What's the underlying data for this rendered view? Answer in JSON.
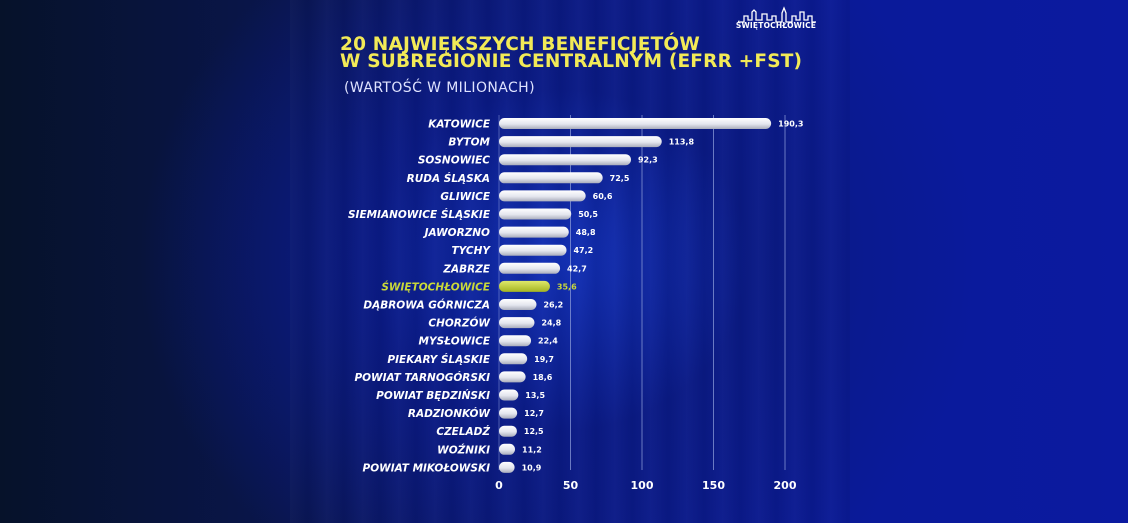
{
  "header": {
    "title_line1": "20 NAJWIĘKSZYCH BENEFICJĘTÓW",
    "title_line2": "W SUBREGIONIE CENTRALNYM (EFRR +FST)",
    "subtitle": "(WARTOŚĆ W MILIONACH)",
    "logo_text": "ŚWIĘTOCHŁOWICE"
  },
  "colors": {
    "title": "#f2ea57",
    "highlight": "#c9d83a",
    "bar": "#e9eaf0",
    "label": "#ffffff",
    "gridline": "#8a9ad8"
  },
  "chart_data": {
    "type": "bar",
    "orientation": "horizontal",
    "categories": [
      "KATOWICE",
      "BYTOM",
      "SOSNOWIEC",
      "RUDA ŚLĄSKA",
      "GLIWICE",
      "SIEMIANOWICE ŚLĄSKIE",
      "JAWORZNO",
      "TYCHY",
      "ZABRZE",
      "ŚWIĘTOCHŁOWICE",
      "DĄBROWA GÓRNICZA",
      "CHORZÓW",
      "MYSŁOWICE",
      "PIEKARY ŚLĄSKIE",
      "POWIAT TARNOGÓRSKI",
      "POWIAT BĘDZIŃSKI",
      "RADZIONKÓW",
      "CZELADŹ",
      "WOŹNIKI",
      "POWIAT MIKOŁOWSKI"
    ],
    "values": [
      190.3,
      113.8,
      92.3,
      72.5,
      60.6,
      50.5,
      48.8,
      47.2,
      42.7,
      35.6,
      26.2,
      24.8,
      22.4,
      19.7,
      18.6,
      13.5,
      12.7,
      12.5,
      11.2,
      10.9
    ],
    "value_labels": [
      "190,3",
      "113,8",
      "92,3",
      "72,5",
      "60,6",
      "50,5",
      "48,8",
      "47,2",
      "42,7",
      "35,6",
      "26,2",
      "24,8",
      "22,4",
      "19,7",
      "18,6",
      "13,5",
      "12,7",
      "12,5",
      "11,2",
      "10,9"
    ],
    "highlighted_category": "ŚWIĘTOCHŁOWICE",
    "xticks": [
      0,
      50,
      100,
      150,
      200
    ],
    "xlim": [
      0,
      200
    ],
    "grid": true
  }
}
